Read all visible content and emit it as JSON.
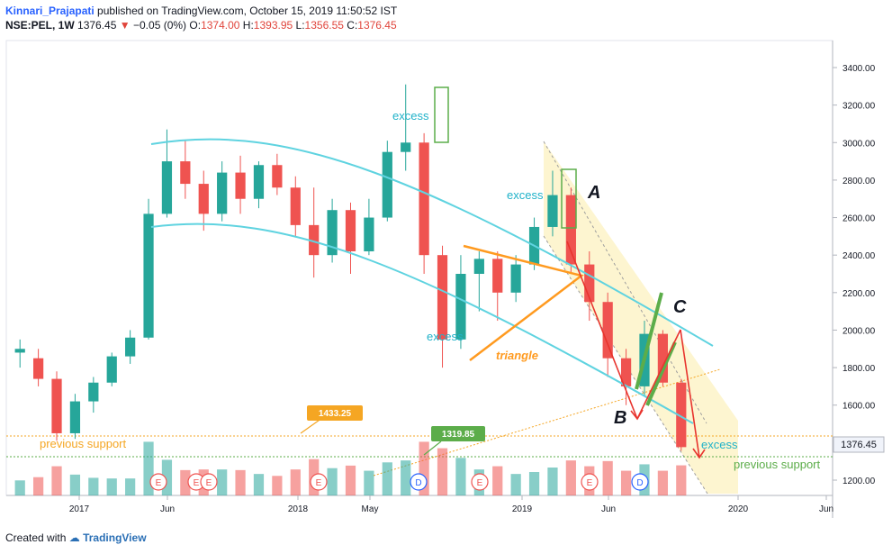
{
  "header": {
    "author": "Kinnari_Prajapati",
    "published": "published on TradingView.com, October 15, 2019 11:50:52 IST",
    "symbol": "NSE:PEL, 1W",
    "last": "1376.45",
    "change": "−0.05 (0%)",
    "o_label": "O:",
    "o_value": "1374.00",
    "h_label": "H:",
    "h_value": "1393.95",
    "l_label": "L:",
    "l_value": "1356.55",
    "c_label": "C:",
    "c_value": "1376.45"
  },
  "footer": {
    "created": "Created with",
    "brand": "TradingView"
  },
  "colors": {
    "up": "#26a69a",
    "down": "#ef5350",
    "channel": "#5fd3e0",
    "triangle": "#ff9a1f",
    "green_line": "#5cad4a",
    "arrow": "#e8342e",
    "zone": "#fdf3c8",
    "support": "#f5a623"
  },
  "chart_data": {
    "type": "candlestick",
    "interval": "1W",
    "y_axis": {
      "ticks": [
        "3400.00",
        "3200.00",
        "3000.00",
        "2800.00",
        "2600.00",
        "2400.00",
        "2200.00",
        "2000.00",
        "1800.00",
        "1600.00",
        "1400.00",
        "1200.00"
      ],
      "ylim": [
        1130,
        3500
      ]
    },
    "x_axis": {
      "ticks": [
        "2017",
        "Jun",
        "2018",
        "May",
        "2019",
        "Jun",
        "2020",
        "Jun"
      ]
    },
    "price_labels": {
      "last": "1376.45",
      "level_a": "1433.25",
      "level_b": "1319.85"
    },
    "series": [
      {
        "x": "2016-10",
        "o": 1880,
        "h": 1950,
        "l": 1800,
        "c": 1900
      },
      {
        "x": "2016-11",
        "o": 1850,
        "h": 1900,
        "l": 1700,
        "c": 1740
      },
      {
        "x": "2016-12",
        "o": 1740,
        "h": 1780,
        "l": 1410,
        "c": 1450
      },
      {
        "x": "2017-01",
        "o": 1450,
        "h": 1660,
        "l": 1420,
        "c": 1620
      },
      {
        "x": "2017-02",
        "o": 1620,
        "h": 1750,
        "l": 1560,
        "c": 1720
      },
      {
        "x": "2017-03",
        "o": 1720,
        "h": 1880,
        "l": 1700,
        "c": 1860
      },
      {
        "x": "2017-04",
        "o": 1860,
        "h": 2000,
        "l": 1820,
        "c": 1960
      },
      {
        "x": "2017-05",
        "o": 1960,
        "h": 2700,
        "l": 1950,
        "c": 2620
      },
      {
        "x": "2017-06",
        "o": 2620,
        "h": 3070,
        "l": 2600,
        "c": 2900
      },
      {
        "x": "2017-07",
        "o": 2900,
        "h": 3010,
        "l": 2700,
        "c": 2780
      },
      {
        "x": "2017-08",
        "o": 2780,
        "h": 2850,
        "l": 2530,
        "c": 2620
      },
      {
        "x": "2017-09",
        "o": 2620,
        "h": 2900,
        "l": 2580,
        "c": 2840
      },
      {
        "x": "2017-10",
        "o": 2840,
        "h": 2930,
        "l": 2620,
        "c": 2700
      },
      {
        "x": "2017-11",
        "o": 2700,
        "h": 2900,
        "l": 2650,
        "c": 2880
      },
      {
        "x": "2017-12",
        "o": 2880,
        "h": 2940,
        "l": 2720,
        "c": 2760
      },
      {
        "x": "2018-01",
        "o": 2760,
        "h": 2820,
        "l": 2500,
        "c": 2560
      },
      {
        "x": "2018-02",
        "o": 2560,
        "h": 2760,
        "l": 2280,
        "c": 2400
      },
      {
        "x": "2018-03",
        "o": 2400,
        "h": 2700,
        "l": 2360,
        "c": 2640
      },
      {
        "x": "2018-04",
        "o": 2640,
        "h": 2680,
        "l": 2300,
        "c": 2420
      },
      {
        "x": "2018-05",
        "o": 2420,
        "h": 2700,
        "l": 2400,
        "c": 2600
      },
      {
        "x": "2018-06",
        "o": 2600,
        "h": 3010,
        "l": 2580,
        "c": 2950
      },
      {
        "x": "2018-07",
        "o": 2950,
        "h": 3310,
        "l": 2850,
        "c": 3000
      },
      {
        "x": "2018-08",
        "o": 3000,
        "h": 3050,
        "l": 2300,
        "c": 2400
      },
      {
        "x": "2018-09",
        "o": 2400,
        "h": 2450,
        "l": 1800,
        "c": 1950
      },
      {
        "x": "2018-10",
        "o": 1950,
        "h": 2400,
        "l": 1900,
        "c": 2300
      },
      {
        "x": "2018-11",
        "o": 2300,
        "h": 2420,
        "l": 2100,
        "c": 2380
      },
      {
        "x": "2018-12",
        "o": 2380,
        "h": 2420,
        "l": 2050,
        "c": 2200
      },
      {
        "x": "2019-01",
        "o": 2200,
        "h": 2400,
        "l": 2150,
        "c": 2350
      },
      {
        "x": "2019-02",
        "o": 2350,
        "h": 2600,
        "l": 2320,
        "c": 2550
      },
      {
        "x": "2019-03",
        "o": 2550,
        "h": 2850,
        "l": 2500,
        "c": 2720
      },
      {
        "x": "2019-04",
        "o": 2720,
        "h": 2760,
        "l": 2300,
        "c": 2350
      },
      {
        "x": "2019-05",
        "o": 2350,
        "h": 2420,
        "l": 2050,
        "c": 2150
      },
      {
        "x": "2019-06",
        "o": 2150,
        "h": 2200,
        "l": 1750,
        "c": 1850
      },
      {
        "x": "2019-07",
        "o": 1850,
        "h": 1900,
        "l": 1600,
        "c": 1700
      },
      {
        "x": "2019-08",
        "o": 1700,
        "h": 2050,
        "l": 1650,
        "c": 1980
      },
      {
        "x": "2019-09",
        "o": 1980,
        "h": 2000,
        "l": 1700,
        "c": 1720
      },
      {
        "x": "2019-10",
        "o": 1720,
        "h": 1740,
        "l": 1356,
        "c": 1376
      }
    ],
    "events": [
      "E",
      "E",
      "E",
      "E",
      "D",
      "E",
      "E",
      "D"
    ],
    "annotations": {
      "excess_1": "excess",
      "excess_2": "excess",
      "excess_3": "excess",
      "excess_4": "excess",
      "label_a": "A",
      "label_b": "B",
      "label_c": "C",
      "triangle": "triangle",
      "support_left": "previous support",
      "support_right": "previous support"
    }
  }
}
